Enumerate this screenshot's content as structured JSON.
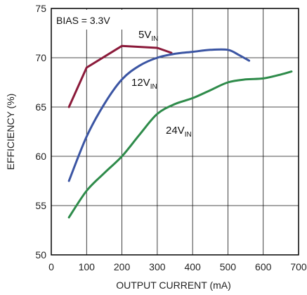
{
  "chart_data": {
    "type": "line",
    "title": "",
    "xlabel": "OUTPUT CURRENT (mA)",
    "ylabel": "EFFICIENCY (%)",
    "xlim": [
      0,
      700
    ],
    "ylim": [
      50,
      75
    ],
    "xticks": [
      0,
      100,
      200,
      300,
      400,
      500,
      600,
      700
    ],
    "yticks": [
      50,
      55,
      60,
      65,
      70,
      75
    ],
    "grid": true,
    "annotation": "BIAS = 3.3V",
    "series": [
      {
        "name": "5V",
        "name_subscript": "IN",
        "color": "#8b1a3a",
        "x": [
          50,
          100,
          200,
          300,
          340
        ],
        "y": [
          65.0,
          69.0,
          71.2,
          71.0,
          70.5
        ]
      },
      {
        "name": "12V",
        "name_subscript": "IN",
        "color": "#3b55a3",
        "x": [
          50,
          100,
          150,
          200,
          250,
          300,
          350,
          400,
          450,
          500,
          530,
          560
        ],
        "y": [
          57.5,
          62.0,
          65.3,
          67.8,
          69.2,
          70.0,
          70.4,
          70.6,
          70.8,
          70.8,
          70.3,
          69.7
        ]
      },
      {
        "name": "24V",
        "name_subscript": "IN",
        "color": "#2e8b4a",
        "x": [
          50,
          100,
          150,
          200,
          250,
          300,
          350,
          400,
          450,
          500,
          550,
          600,
          650,
          680
        ],
        "y": [
          53.8,
          56.5,
          58.3,
          60.0,
          62.2,
          64.3,
          65.3,
          65.9,
          66.7,
          67.5,
          67.8,
          67.9,
          68.3,
          68.6
        ]
      }
    ]
  }
}
